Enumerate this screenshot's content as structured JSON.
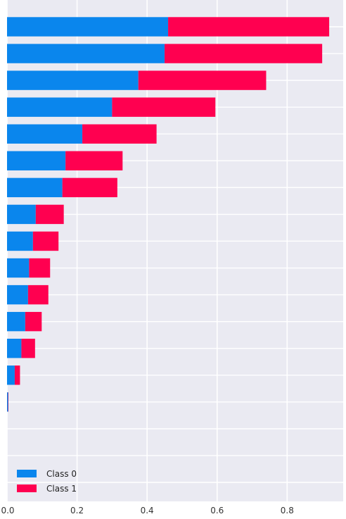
{
  "chart_data": {
    "type": "bar",
    "orientation": "horizontal",
    "stacked": true,
    "title": "",
    "xlabel": "",
    "ylabel": "",
    "xlim": [
      0,
      0.96
    ],
    "xticks": [
      0.0,
      0.2,
      0.4,
      0.6,
      0.8
    ],
    "xtick_labels": [
      "0.0",
      "0.2",
      "0.4",
      "0.6",
      "0.8"
    ],
    "categories": [
      "",
      "",
      "",
      "",
      "",
      "",
      "",
      "",
      "",
      "",
      "",
      "",
      "",
      "",
      "",
      "",
      "",
      ""
    ],
    "series": [
      {
        "name": "Class 0",
        "color": "#0a86ed",
        "values": [
          0.46,
          0.45,
          0.375,
          0.3,
          0.215,
          0.167,
          0.158,
          0.082,
          0.074,
          0.063,
          0.06,
          0.052,
          0.041,
          0.022,
          0.003,
          0.0,
          0.0,
          0.0
        ]
      },
      {
        "name": "Class 1",
        "color": "#ff0050",
        "values": [
          0.46,
          0.45,
          0.365,
          0.295,
          0.212,
          0.163,
          0.157,
          0.08,
          0.073,
          0.06,
          0.058,
          0.047,
          0.039,
          0.015,
          0.001,
          0.0,
          0.0,
          0.0
        ]
      }
    ],
    "grid": true,
    "background": "#eaeaf2",
    "legend": {
      "placement": "bottom-left",
      "entries": [
        "Class 0",
        "Class 1"
      ]
    }
  }
}
